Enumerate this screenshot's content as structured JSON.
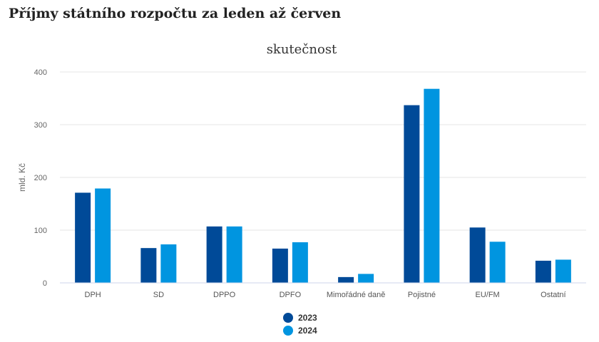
{
  "page": {
    "title": "Příjmy státního rozpočtu za leden až červen"
  },
  "chart_data": {
    "type": "bar",
    "title": "skutečnost",
    "xlabel": "",
    "ylabel": "mld. Kč",
    "ylim": [
      0,
      400
    ],
    "yticks": [
      0,
      100,
      200,
      300,
      400
    ],
    "grid": true,
    "legend_position": "bottom",
    "categories": [
      "DPH",
      "SD",
      "DPPO",
      "DPFO",
      "Mimořádné daně",
      "Pojistné",
      "EU/FM",
      "Ostatní"
    ],
    "series": [
      {
        "name": "2023",
        "color": "#004a98",
        "values": [
          171,
          66,
          107,
          65,
          11,
          337,
          105,
          42
        ]
      },
      {
        "name": "2024",
        "color": "#0095e0",
        "values": [
          179,
          73,
          107,
          77,
          17,
          368,
          78,
          44
        ]
      }
    ]
  }
}
